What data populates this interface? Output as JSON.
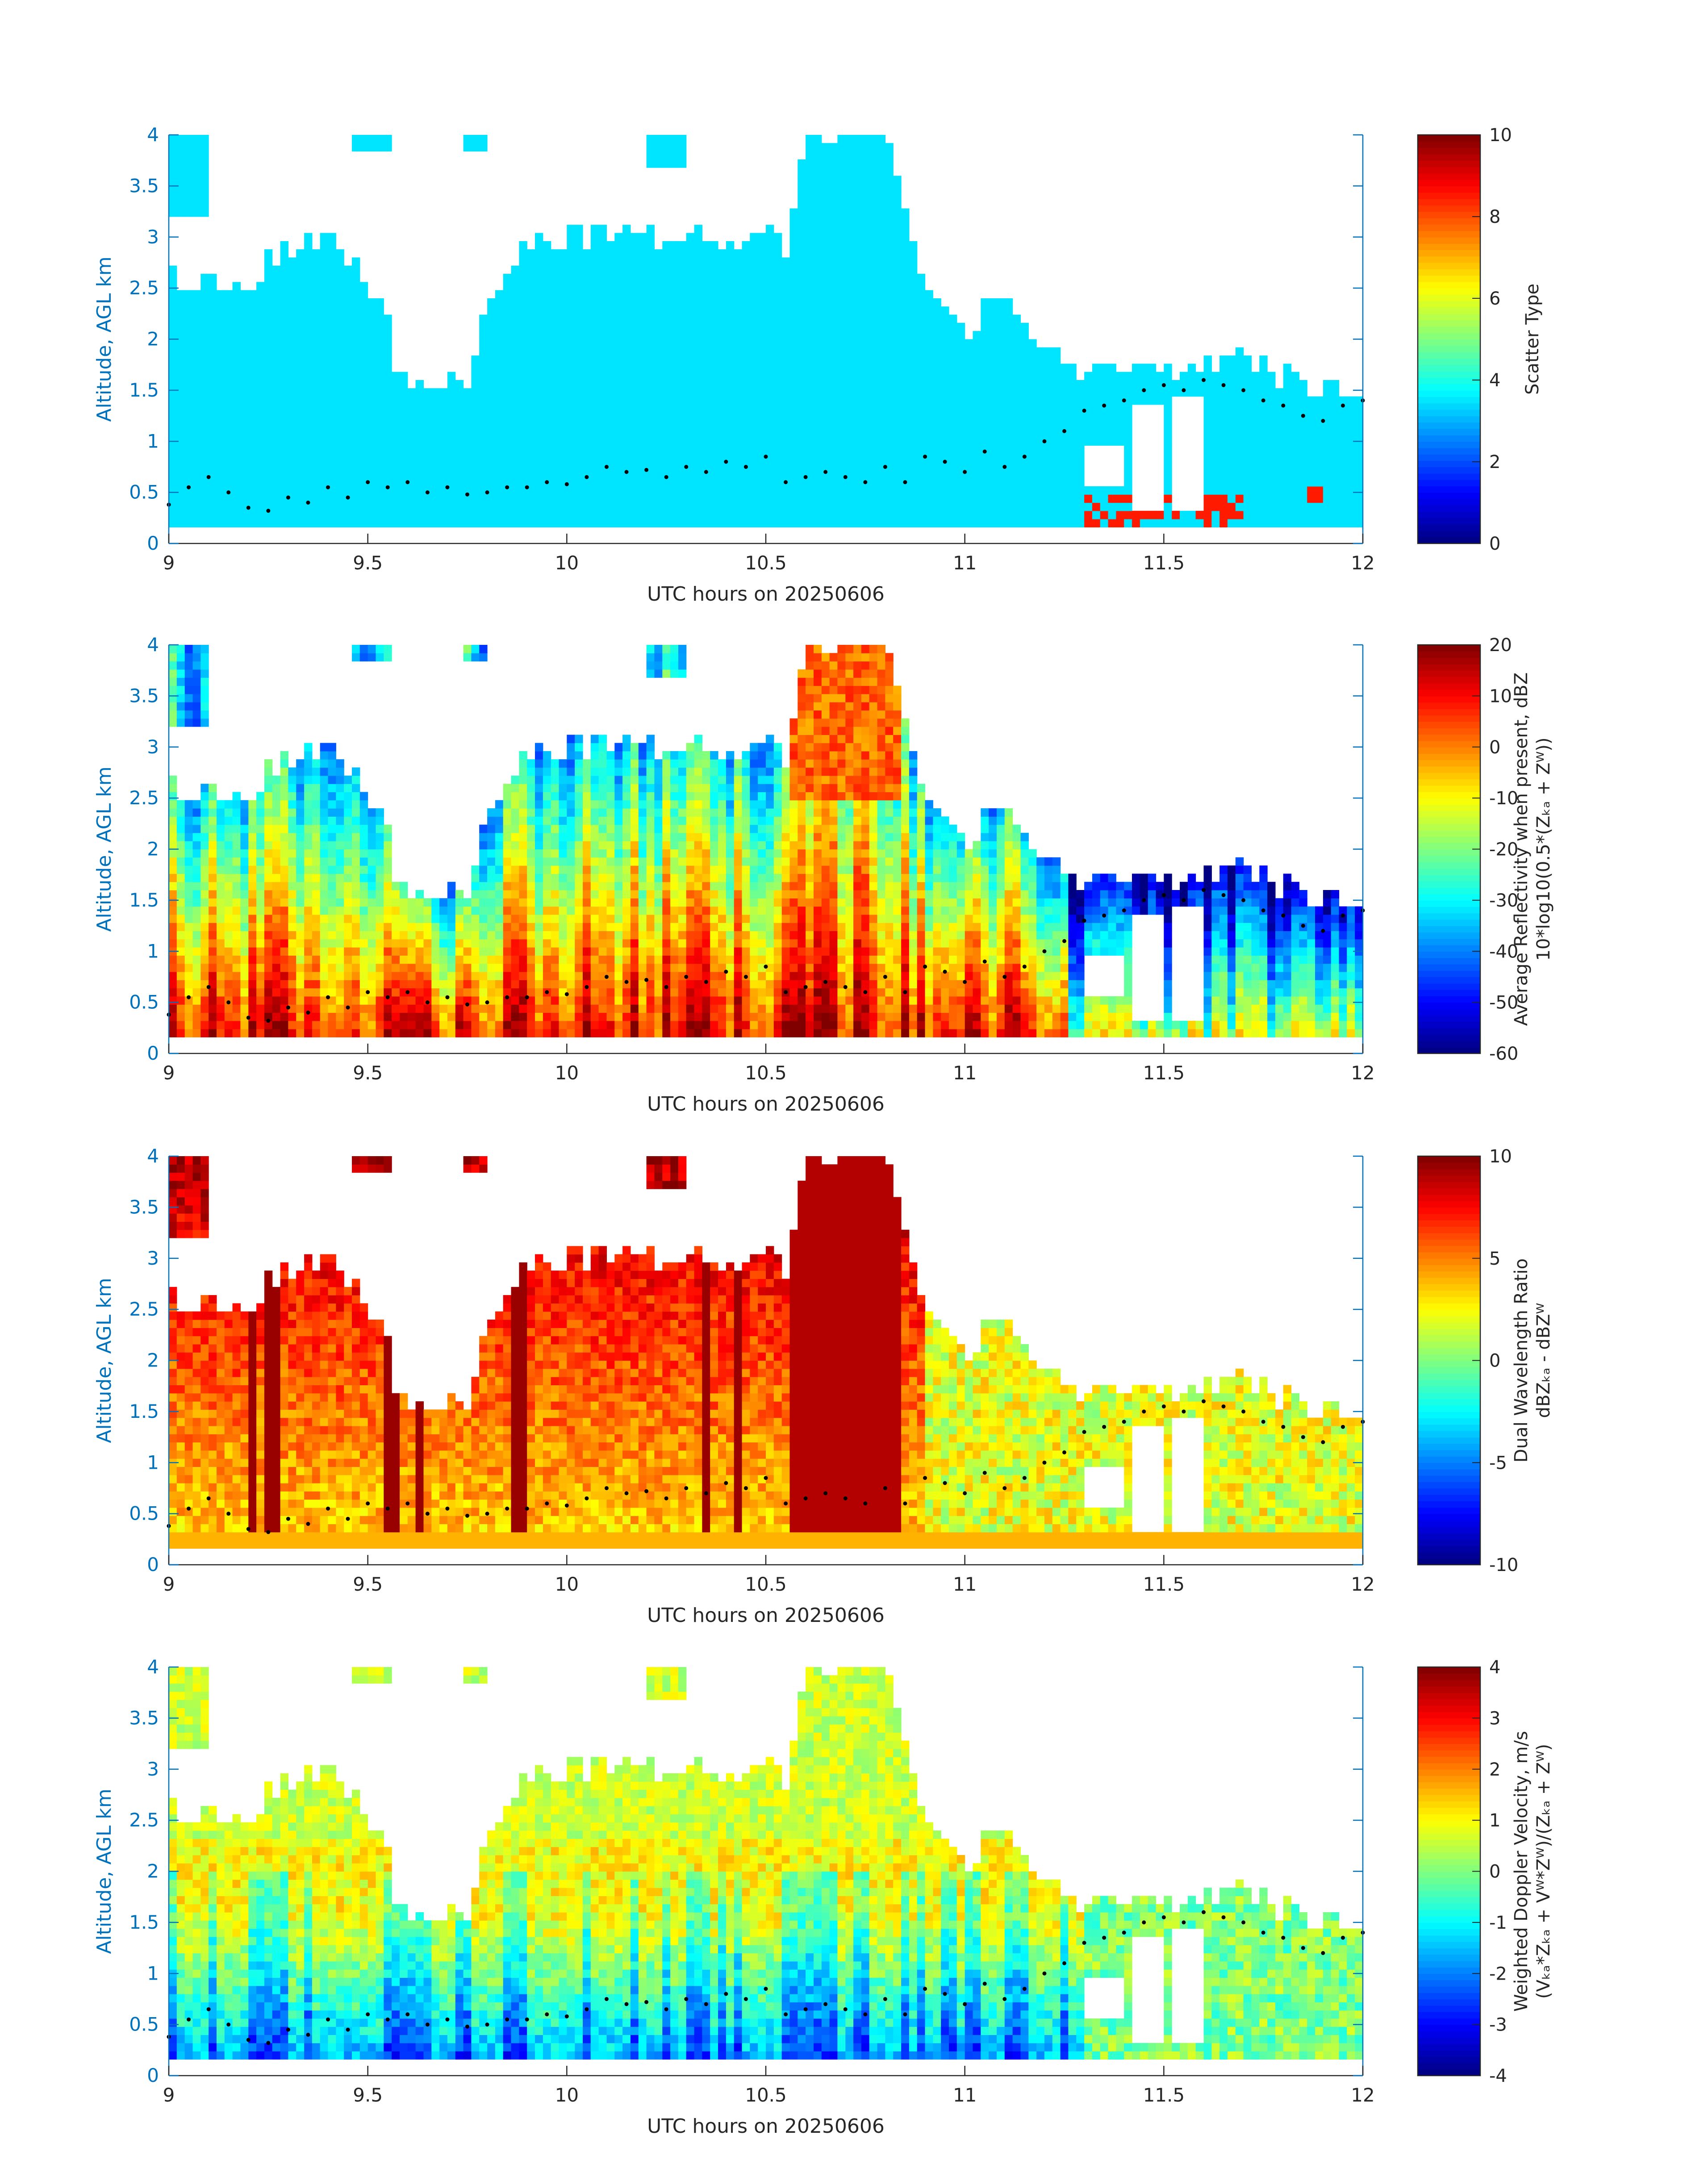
{
  "chart_data": [
    {
      "type": "heatmap",
      "xlabel": "UTC hours on 20250606",
      "ylabel": "Altitude, AGL km",
      "xlim": [
        9,
        12
      ],
      "ylim": [
        0,
        4
      ],
      "xticks": [
        "9",
        "9.5",
        "10",
        "10.5",
        "11",
        "11.5",
        "12"
      ],
      "yticks": [
        "0",
        "0.5",
        "1",
        "1.5",
        "2",
        "2.5",
        "3",
        "3.5",
        "4"
      ],
      "colorbar": {
        "label_lines": [
          "Scatter Type"
        ],
        "range": [
          0,
          10
        ],
        "ticks": [
          "0",
          "2",
          "4",
          "6",
          "8",
          "10"
        ]
      },
      "field": "scatter"
    },
    {
      "type": "heatmap",
      "xlabel": "UTC hours on 20250606",
      "ylabel": "Altitude, AGL km",
      "xlim": [
        9,
        12
      ],
      "ylim": [
        0,
        4
      ],
      "xticks": [
        "9",
        "9.5",
        "10",
        "10.5",
        "11",
        "11.5",
        "12"
      ],
      "yticks": [
        "0",
        "0.5",
        "1",
        "1.5",
        "2",
        "2.5",
        "3",
        "3.5",
        "4"
      ],
      "colorbar": {
        "label_lines": [
          "Average Reflectivity when present, dBZ",
          "10*log10(0.5*(Zₖₐ + Zᵂ))"
        ],
        "range": [
          -60,
          20
        ],
        "ticks": [
          "-60",
          "-50",
          "-40",
          "-30",
          "-20",
          "-10",
          "0",
          "10",
          "20"
        ]
      },
      "field": "reflectivity"
    },
    {
      "type": "heatmap",
      "xlabel": "UTC hours on 20250606",
      "ylabel": "Altitude, AGL km",
      "xlim": [
        9,
        12
      ],
      "ylim": [
        0,
        4
      ],
      "xticks": [
        "9",
        "9.5",
        "10",
        "10.5",
        "11",
        "11.5",
        "12"
      ],
      "yticks": [
        "0",
        "0.5",
        "1",
        "1.5",
        "2",
        "2.5",
        "3",
        "3.5",
        "4"
      ],
      "colorbar": {
        "label_lines": [
          "Dual Wavelength Ratio",
          "dBZₖₐ - dBZᵂ"
        ],
        "range": [
          -10,
          10
        ],
        "ticks": [
          "-10",
          "-5",
          "0",
          "5",
          "10"
        ]
      },
      "field": "dwr"
    },
    {
      "type": "heatmap",
      "xlabel": "UTC hours on 20250606",
      "ylabel": "Altitude, AGL km",
      "xlim": [
        9,
        12
      ],
      "ylim": [
        0,
        4
      ],
      "xticks": [
        "9",
        "9.5",
        "10",
        "10.5",
        "11",
        "11.5",
        "12"
      ],
      "yticks": [
        "0",
        "0.5",
        "1",
        "1.5",
        "2",
        "2.5",
        "3",
        "3.5",
        "4"
      ],
      "colorbar": {
        "label_lines": [
          "Weighted Doppler Velocity, m/s",
          "(Vₖₐ*Zₖₐ + Vᵂ*Zᵂ)/(Zₖₐ + Zᵂ)"
        ],
        "range": [
          -4,
          4
        ],
        "ticks": [
          "-4",
          "-3",
          "-2",
          "-1",
          "0",
          "1",
          "2",
          "3",
          "4"
        ]
      },
      "field": "velocity"
    }
  ],
  "cloud_top_profile": {
    "times": [
      9.0,
      9.1,
      9.2,
      9.3,
      9.4,
      9.5,
      9.6,
      9.7,
      9.75,
      9.8,
      9.9,
      10.0,
      10.1,
      10.2,
      10.3,
      10.4,
      10.5,
      10.55,
      10.6,
      10.7,
      10.8,
      10.9,
      11.0,
      11.1,
      11.2,
      11.3,
      11.35,
      11.5,
      11.55,
      11.6,
      11.65,
      11.7,
      11.8,
      11.9,
      12.0
    ],
    "tops_km": [
      2.6,
      2.55,
      2.55,
      2.9,
      3.0,
      2.6,
      1.6,
      1.6,
      1.55,
      2.4,
      2.9,
      3.0,
      3.05,
      3.0,
      3.05,
      2.95,
      3.0,
      2.9,
      4.0,
      4.0,
      4.0,
      2.5,
      2.1,
      2.45,
      1.9,
      1.65,
      1.8,
      1.65,
      1.7,
      1.75,
      1.8,
      1.85,
      1.65,
      1.5,
      1.5
    ]
  },
  "boundary_dots": {
    "times": [
      9.0,
      9.05,
      9.1,
      9.15,
      9.2,
      9.25,
      9.3,
      9.35,
      9.4,
      9.45,
      9.5,
      9.55,
      9.6,
      9.65,
      9.7,
      9.75,
      9.8,
      9.85,
      9.9,
      9.95,
      10.0,
      10.05,
      10.1,
      10.15,
      10.2,
      10.25,
      10.3,
      10.35,
      10.4,
      10.45,
      10.5,
      10.55,
      10.6,
      10.65,
      10.7,
      10.75,
      10.8,
      10.85,
      10.9,
      10.95,
      11.0,
      11.05,
      11.1,
      11.15,
      11.2,
      11.25,
      11.3,
      11.35,
      11.4,
      11.45,
      11.5,
      11.55,
      11.6,
      11.65,
      11.7,
      11.75,
      11.8,
      11.85,
      11.9,
      11.95,
      12.0
    ],
    "alt_km": [
      0.38,
      0.55,
      0.65,
      0.5,
      0.35,
      0.32,
      0.45,
      0.4,
      0.55,
      0.45,
      0.6,
      0.55,
      0.6,
      0.5,
      0.55,
      0.48,
      0.5,
      0.55,
      0.55,
      0.6,
      0.58,
      0.65,
      0.75,
      0.7,
      0.72,
      0.65,
      0.75,
      0.7,
      0.8,
      0.75,
      0.85,
      0.6,
      0.65,
      0.7,
      0.65,
      0.6,
      0.75,
      0.6,
      0.85,
      0.8,
      0.7,
      0.9,
      0.75,
      0.85,
      1.0,
      1.1,
      1.3,
      1.35,
      1.4,
      1.5,
      1.55,
      1.5,
      1.6,
      1.55,
      1.5,
      1.4,
      1.35,
      1.25,
      1.2,
      1.35,
      1.4
    ]
  }
}
